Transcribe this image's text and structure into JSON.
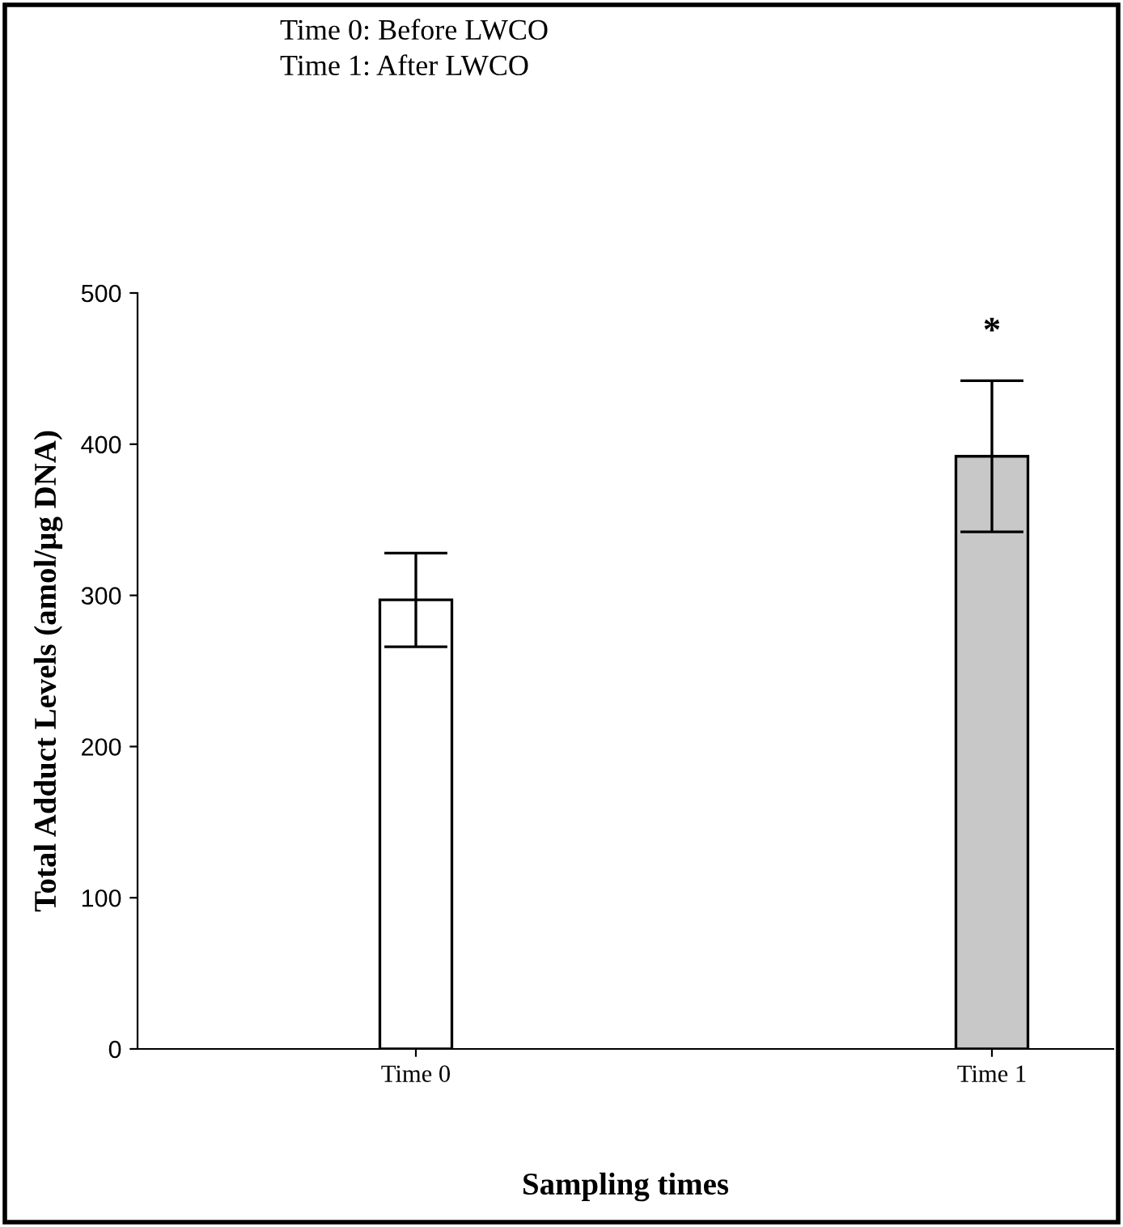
{
  "chart_data": {
    "type": "bar",
    "categories": [
      "Time 0",
      "Time 1"
    ],
    "values": [
      297,
      392
    ],
    "errors": [
      31,
      50
    ],
    "colors": [
      "#ffffff",
      "#c8c8c8"
    ],
    "ylim": [
      0,
      500
    ],
    "yticks": [
      0,
      100,
      200,
      300,
      400,
      500
    ],
    "xlabel": "Sampling times",
    "ylabel": "Total Adduct Levels (amol/µg DNA)",
    "annotations": [
      "Time 0: Before LWCO",
      "Time 1: After LWCO",
      "*"
    ],
    "grid": false,
    "legend": false
  }
}
